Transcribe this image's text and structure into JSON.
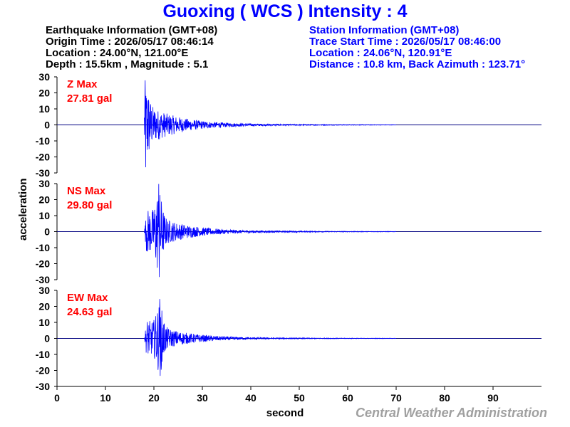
{
  "title": "Guoxing ( WCS ) Intensity : 4",
  "earthquake": {
    "heading": "Earthquake Information  (GMT+08)",
    "origin_time": "Origin Time : 2026/05/17 08:46:14",
    "location": "Location : 24.00°N, 121.00°E",
    "depth_magnitude": "Depth : 15.5km , Magnitude : 5.1"
  },
  "station": {
    "heading": "Station Information  (GMT+08)",
    "trace_start": "Trace Start Time : 2026/05/17 08:46:00",
    "location": "Location : 24.06°N, 120.91°E",
    "distance_azimuth": "Distance : 10.8 km, Back Azimuth : 123.71°"
  },
  "credit": "Central Weather Administration",
  "colors": {
    "trace": "#0000ff",
    "max_label": "#ff0000",
    "axis": "#000000",
    "zero_line": "#000080"
  },
  "chart_data": {
    "type": "line",
    "xlabel": "second",
    "ylabel": "acceleration",
    "xlim": [
      0,
      100
    ],
    "xticks": [
      0,
      10,
      20,
      30,
      40,
      50,
      60,
      70,
      80,
      90
    ],
    "ylim": [
      -30,
      30
    ],
    "yticks": [
      30,
      20,
      10,
      0,
      -10,
      -20,
      -30
    ],
    "grid": false,
    "panels": [
      {
        "component": "Z",
        "label": "Z Max",
        "max_value": "27.81 gal",
        "onset": 18,
        "peak_time": 18.2,
        "peak": 27.81
      },
      {
        "component": "NS",
        "label": "NS Max",
        "max_value": "29.80 gal",
        "onset": 18,
        "peak_time": 21,
        "peak": 29.8
      },
      {
        "component": "EW",
        "label": "EW Max",
        "max_value": "24.63 gal",
        "onset": 18,
        "peak_time": 21.2,
        "peak": 24.63
      }
    ]
  }
}
